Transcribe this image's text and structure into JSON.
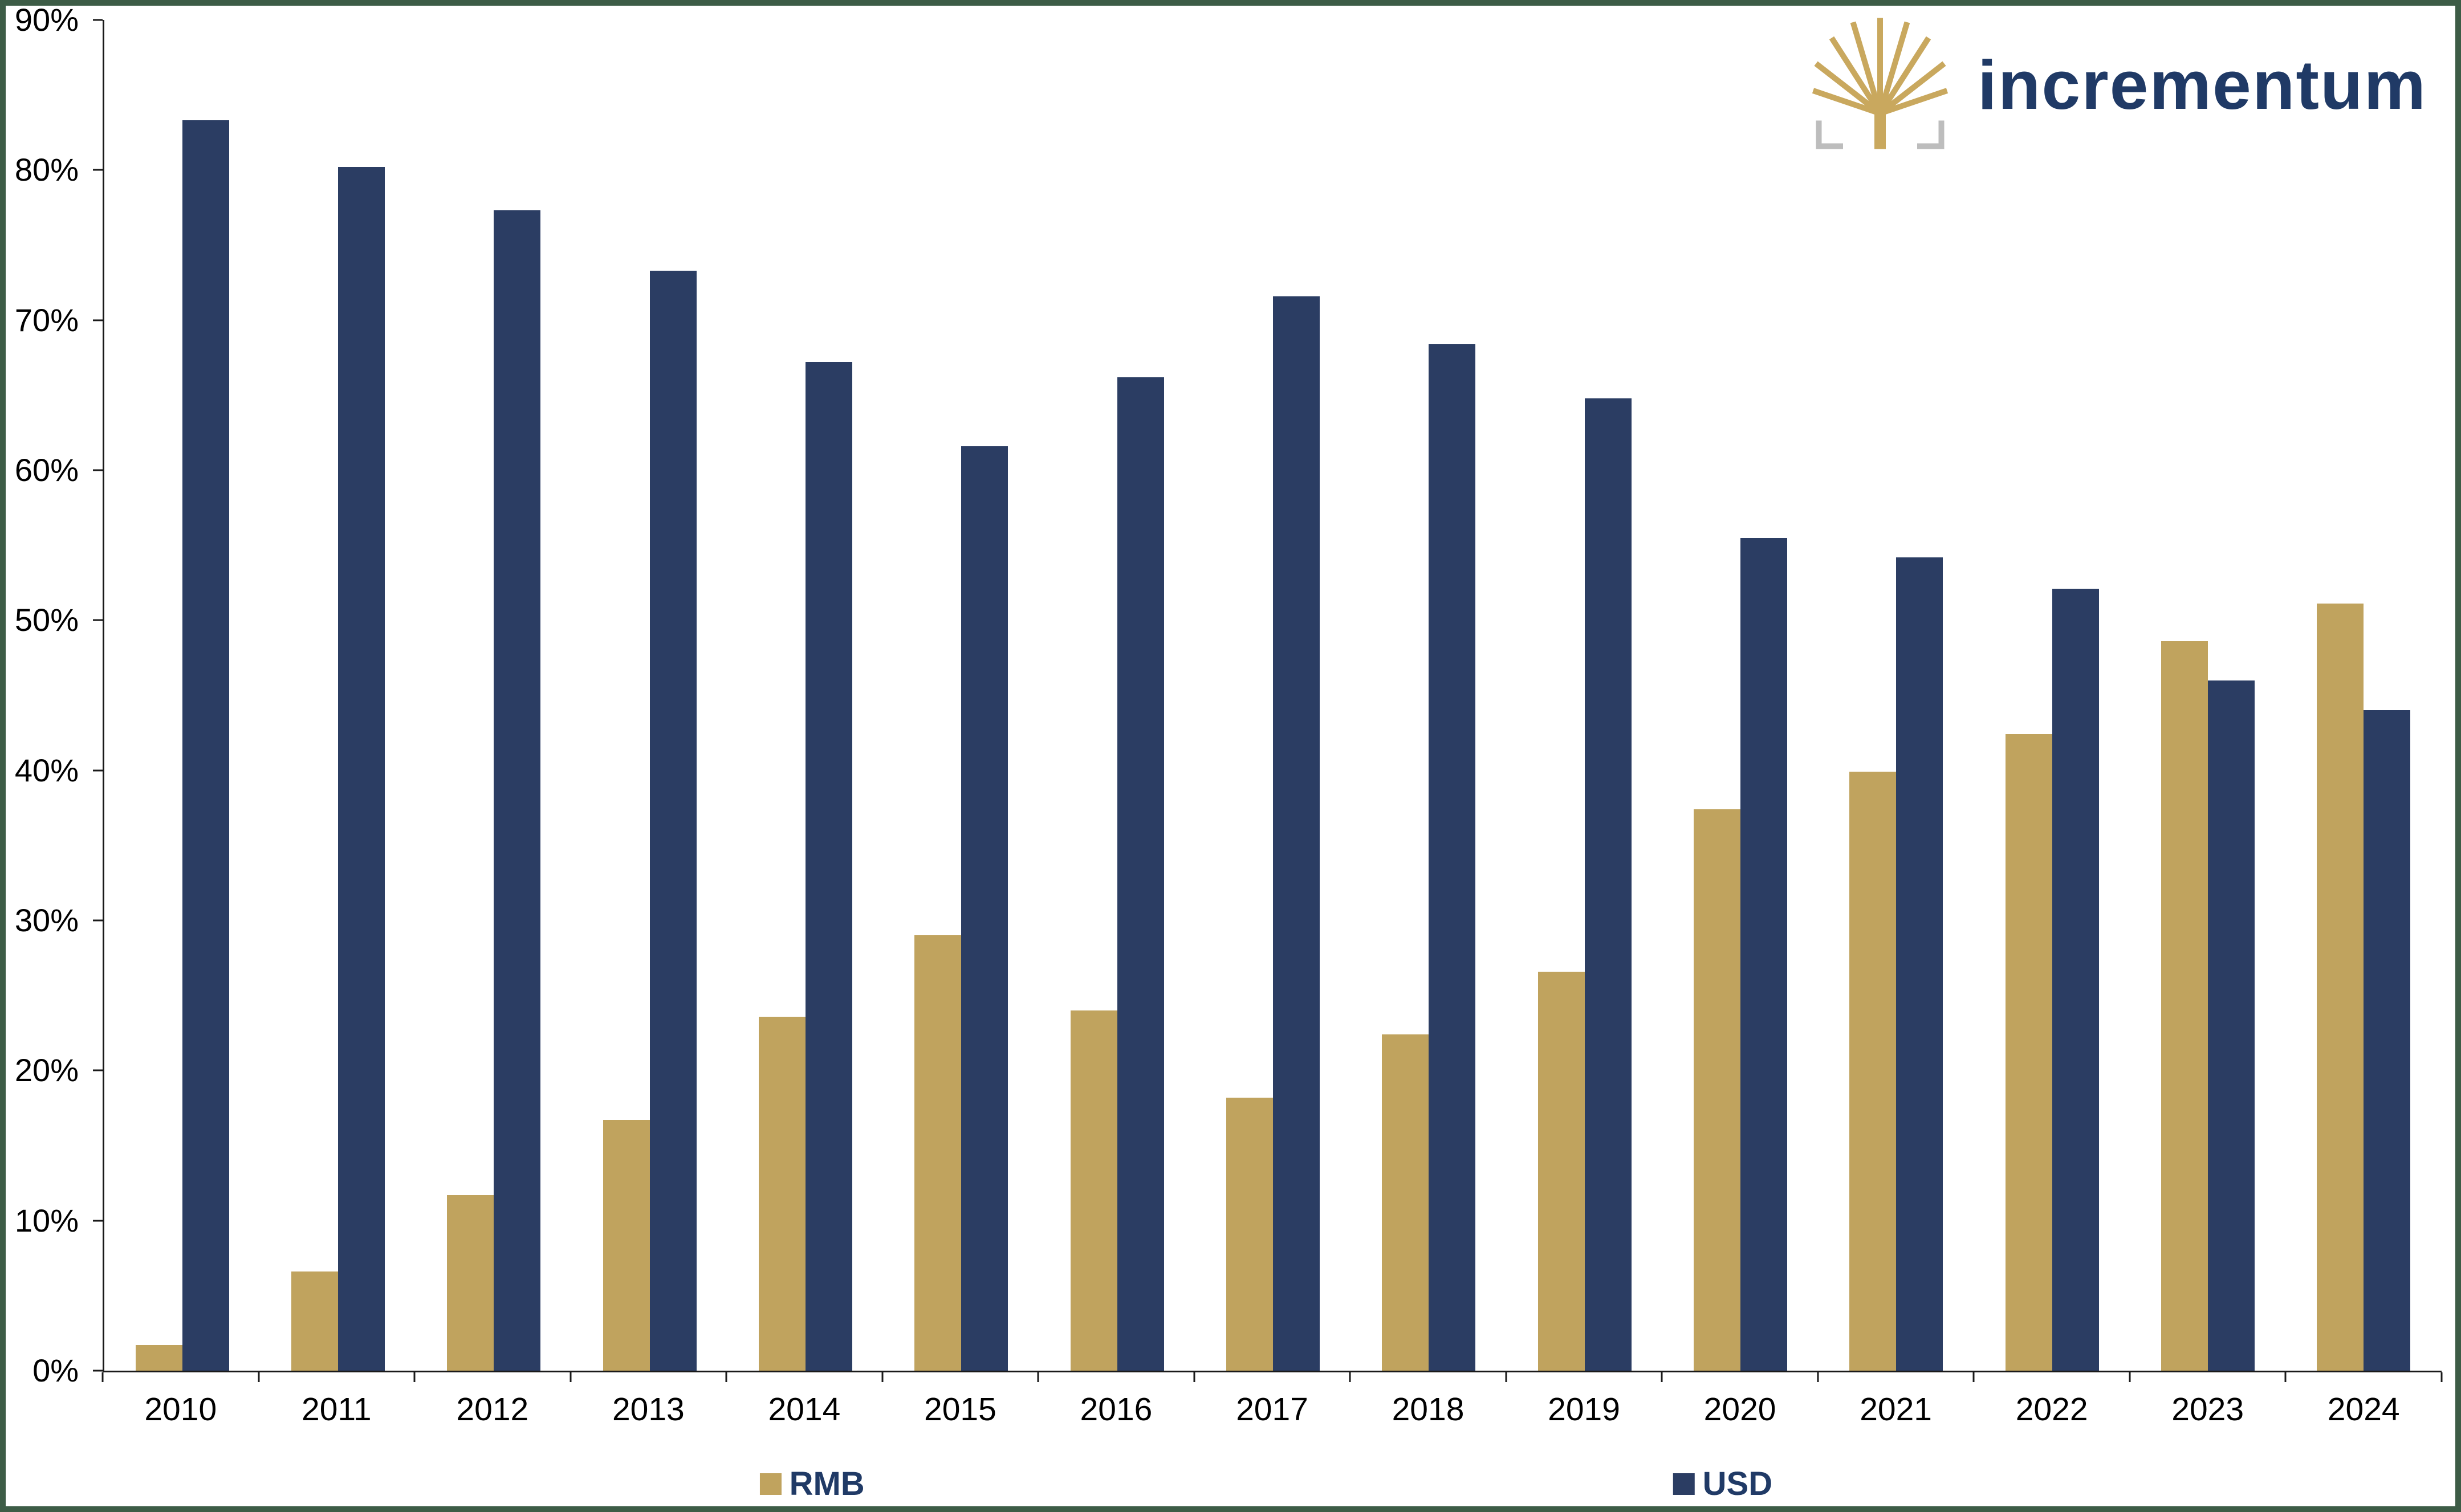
{
  "brand": {
    "name": "incrementum"
  },
  "chart_data": {
    "type": "bar",
    "title": "",
    "categories": [
      "2010",
      "2011",
      "2012",
      "2013",
      "2014",
      "2015",
      "2016",
      "2017",
      "2018",
      "2019",
      "2020",
      "2021",
      "2022",
      "2023",
      "2024"
    ],
    "series": [
      {
        "name": "RMB",
        "color": "#C0A35E",
        "values": [
          1.7,
          6.6,
          11.7,
          16.7,
          23.6,
          29.0,
          24.0,
          18.2,
          22.4,
          26.6,
          37.4,
          39.9,
          42.4,
          48.6,
          51.1
        ]
      },
      {
        "name": "USD",
        "color": "#2B3D63",
        "values": [
          83.3,
          80.2,
          77.3,
          73.3,
          67.2,
          61.6,
          66.2,
          71.6,
          68.4,
          64.8,
          55.5,
          54.2,
          52.1,
          46.0,
          44.0
        ]
      }
    ],
    "xlabel": "",
    "ylabel": "",
    "ylim": [
      0,
      90
    ],
    "ytick_step": 10,
    "ytick_labels": [
      "0%",
      "10%",
      "20%",
      "30%",
      "40%",
      "50%",
      "60%",
      "70%",
      "80%",
      "90%"
    ],
    "grid": false,
    "legend_position": "bottom"
  },
  "colors": {
    "border": "#3D5C46",
    "axis": "#1a1a1a",
    "rmb": "#C0A35E",
    "usd": "#2B3D63",
    "legend_text": "#203A66",
    "logo_text": "#203A66",
    "tree": "#C9A85E",
    "bracket": "#BDBDBD"
  }
}
